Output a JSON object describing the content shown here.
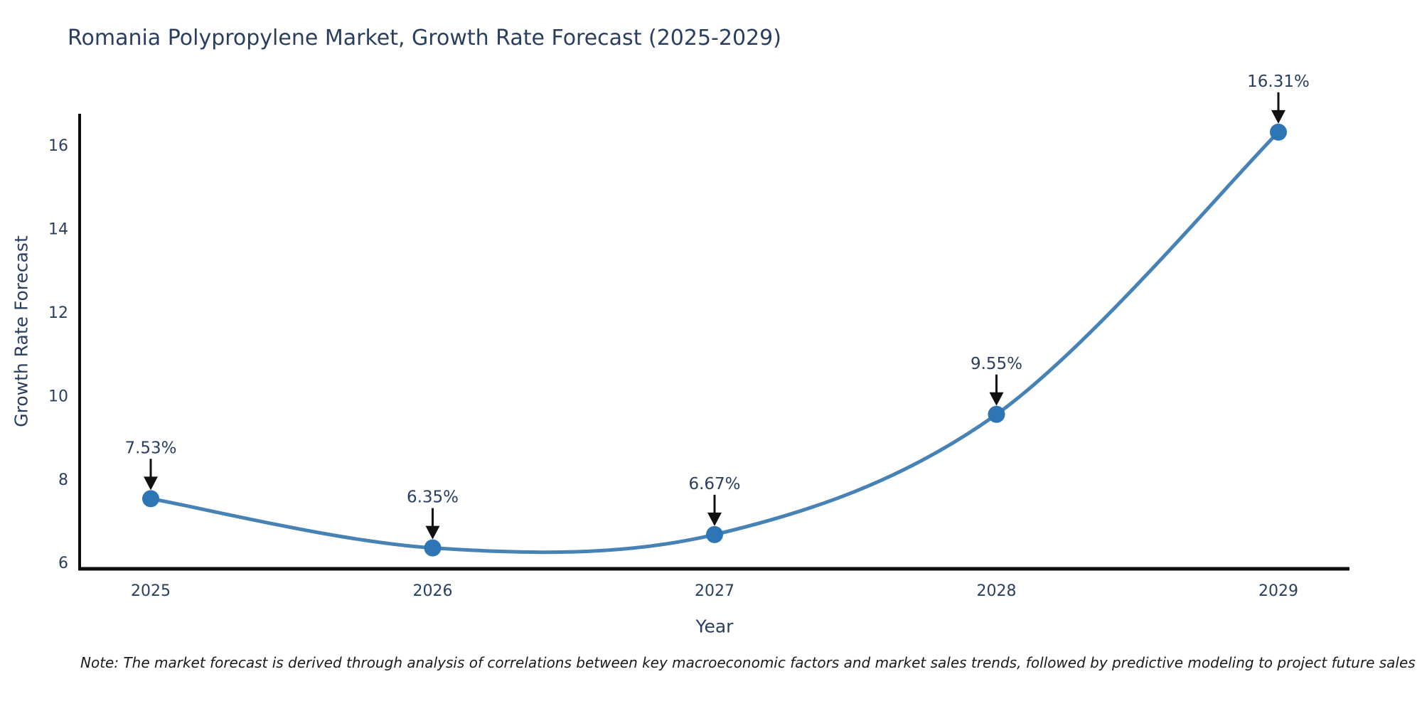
{
  "chart_data": {
    "type": "line",
    "title": "Romania Polypropylene Market, Growth Rate Forecast (2025-2029)",
    "xlabel": "Year",
    "ylabel": "Growth Rate Forecast",
    "categories": [
      "2025",
      "2026",
      "2027",
      "2028",
      "2029"
    ],
    "series": [
      {
        "name": "Growth Rate Forecast",
        "values": [
          7.53,
          6.35,
          6.67,
          9.55,
          16.31
        ]
      }
    ],
    "point_labels": [
      "7.53%",
      "6.35%",
      "6.67%",
      "9.55%",
      "16.31%"
    ],
    "yticks": [
      6,
      8,
      10,
      12,
      14,
      16
    ],
    "ylim": [
      5.85,
      16.75
    ],
    "grid": false,
    "legend": false,
    "line_style": "smooth spline with circular markers and black down-arrow annotations",
    "colors": {
      "line": "#4682b4",
      "marker": "#2e75b6",
      "text": "#2a3f5f",
      "arrow": "#111111",
      "spine": "#0d0d0d"
    }
  },
  "note": "Note: The market forecast is derived through analysis of correlations between key macroeconomic factors and market sales trends, followed by predictive modeling to project future sales"
}
